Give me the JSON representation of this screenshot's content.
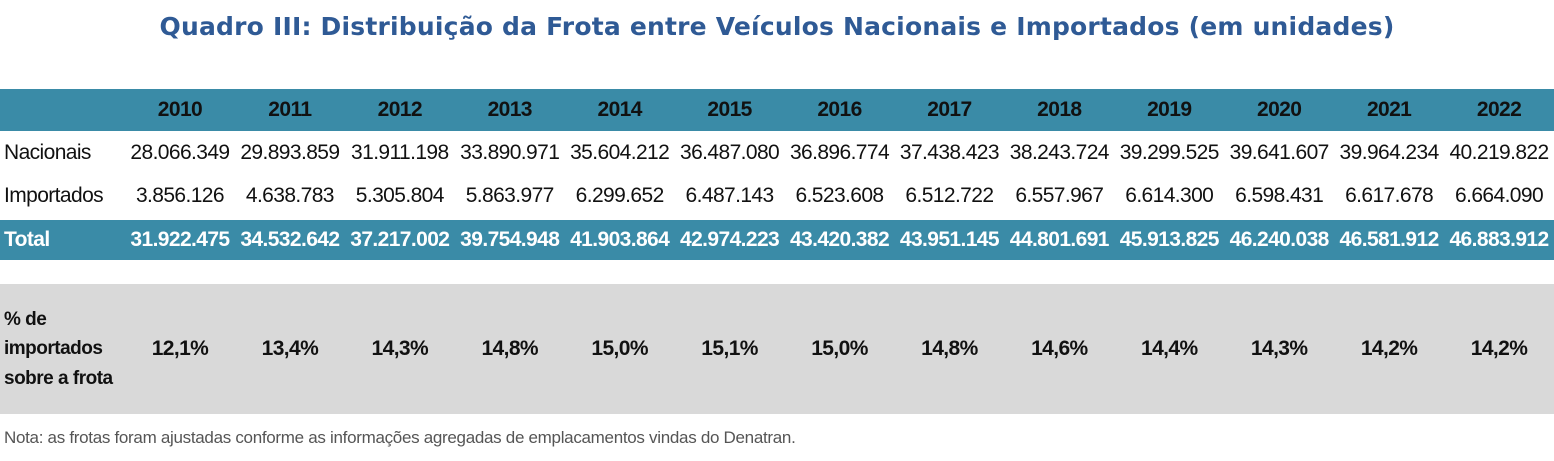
{
  "title": "Quadro III: Distribuição da Frota entre Veículos Nacionais e Importados (em unidades)",
  "table": {
    "years": [
      "2010",
      "2011",
      "2012",
      "2013",
      "2014",
      "2015",
      "2016",
      "2017",
      "2018",
      "2019",
      "2020",
      "2021",
      "2022"
    ],
    "rows": [
      {
        "label": "Nacionais",
        "values": [
          "28.066.349",
          "29.893.859",
          "31.911.198",
          "33.890.971",
          "35.604.212",
          "36.487.080",
          "36.896.774",
          "37.438.423",
          "38.243.724",
          "39.299.525",
          "39.641.607",
          "39.964.234",
          "40.219.822"
        ]
      },
      {
        "label": "Importados",
        "values": [
          "3.856.126",
          "4.638.783",
          "5.305.804",
          "5.863.977",
          "6.299.652",
          "6.487.143",
          "6.523.608",
          "6.512.722",
          "6.557.967",
          "6.614.300",
          "6.598.431",
          "6.617.678",
          "6.664.090"
        ]
      }
    ],
    "total": {
      "label": "Total",
      "values": [
        "31.922.475",
        "34.532.642",
        "37.217.002",
        "39.754.948",
        "41.903.864",
        "42.974.223",
        "43.420.382",
        "43.951.145",
        "44.801.691",
        "45.913.825",
        "46.240.038",
        "46.581.912",
        "46.883.912"
      ]
    }
  },
  "percent": {
    "label_lines": [
      "% de",
      "importados",
      "sobre a frota"
    ],
    "values": [
      "12,1%",
      "13,4%",
      "14,3%",
      "14,8%",
      "15,0%",
      "15,1%",
      "15,0%",
      "14,8%",
      "14,6%",
      "14,4%",
      "14,3%",
      "14,2%",
      "14,2%"
    ]
  },
  "note": "Nota: as frotas foram ajustadas conforme as informações agregadas de emplacamentos vindas do Denatran.",
  "colors": {
    "title": "#2f5a95",
    "header_bg": "#3a8ba7",
    "percent_bg": "#d9d9d9"
  }
}
